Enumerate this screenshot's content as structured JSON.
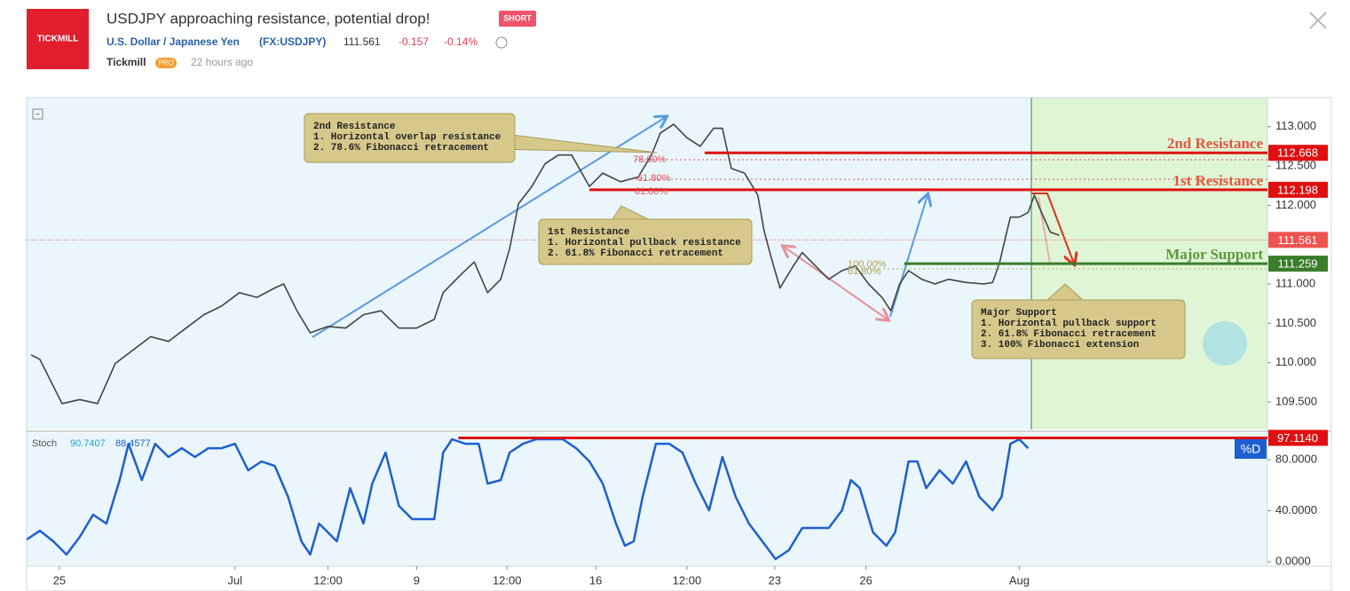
{
  "header": {
    "logo": "TICKMILL",
    "title": "USDJPY approaching resistance, potential drop!",
    "badge": "SHORT",
    "symbol": "U.S. Dollar / Japanese Yen",
    "exchange": "(FX:USDJPY)",
    "price": "111.561",
    "change": "-0.157",
    "change_pct": "-0.14%",
    "author": "Tickmill",
    "author_badge": "PRO",
    "time": "22 hours ago"
  },
  "chart_data": [
    {
      "type": "line",
      "color": "#444444",
      "xlim": [
        0,
        140
      ],
      "ylim": [
        109.15,
        113.37
      ],
      "x": [
        0.5,
        1.5,
        4,
        6,
        8,
        10,
        12,
        14,
        16,
        18,
        20,
        22,
        24,
        26,
        28,
        29,
        30.5,
        32,
        34,
        36,
        38,
        40,
        42,
        44,
        46,
        47,
        49,
        50.5,
        52,
        53.5,
        54.5,
        55.5,
        57,
        58.5,
        60,
        61.5,
        63.5,
        65,
        67,
        69,
        70.5,
        71.5,
        73,
        74.5,
        76,
        77.5,
        78.5,
        79.5,
        81,
        82.5,
        83.2,
        84,
        85,
        86.5,
        87.5,
        89,
        90.5,
        92,
        93.5,
        95,
        96.5,
        97.5,
        98.5,
        99.5,
        101,
        102.5,
        104,
        106,
        108,
        109,
        109.8,
        110.5,
        111,
        112,
        113,
        113.7,
        114.5,
        115.5,
        116.5
      ],
      "values": [
        110.1,
        110.04,
        109.48,
        109.53,
        109.48,
        109.99,
        110.16,
        110.33,
        110.27,
        110.44,
        110.61,
        110.72,
        110.89,
        110.83,
        110.95,
        111.0,
        110.66,
        110.38,
        110.46,
        110.44,
        110.61,
        110.66,
        110.44,
        110.44,
        110.55,
        110.89,
        111.12,
        111.28,
        110.89,
        111.06,
        111.45,
        112.02,
        112.24,
        112.53,
        112.64,
        112.64,
        112.24,
        112.41,
        112.3,
        112.36,
        112.64,
        112.92,
        113.03,
        112.86,
        112.75,
        112.98,
        112.98,
        112.47,
        112.41,
        112.13,
        111.68,
        111.34,
        110.95,
        111.23,
        111.4,
        111.23,
        111.06,
        111.17,
        111.23,
        111.0,
        110.83,
        110.66,
        111.0,
        111.17,
        111.06,
        111.0,
        111.06,
        111.02,
        111.0,
        111.02,
        111.28,
        111.62,
        111.85,
        111.85,
        111.91,
        112.13,
        111.91,
        111.66,
        111.62
      ],
      "yticks": [
        {
          "value": 113,
          "label": "113.000"
        },
        {
          "value": 112.5,
          "label": "112.500"
        },
        {
          "value": 112,
          "label": "112.000"
        },
        {
          "value": 111,
          "label": "111.000"
        },
        {
          "value": 110.5,
          "label": "110.500"
        },
        {
          "value": 110,
          "label": "110.000"
        },
        {
          "value": 109.5,
          "label": "109.500"
        }
      ],
      "levels": [
        {
          "name": "2nd Resistance",
          "value": 112.668,
          "start": 76.5,
          "color": "#e01010"
        },
        {
          "name": "1st Resistance",
          "value": 112.198,
          "start": 63.5,
          "color": "#e01010"
        },
        {
          "name": "Major Support",
          "value": 111.259,
          "start": 99,
          "color": "#3a7d2a"
        }
      ],
      "last_price": 111.561,
      "fib_labels": [
        "78.60%",
        "61.80%",
        "61.80%",
        "100.00%",
        "61.80%"
      ],
      "callouts": [
        {
          "lines": [
            "2nd Resistance",
            "1. Horizontal overlap resistance",
            "2. 78.6% Fibonacci retracement"
          ]
        },
        {
          "lines": [
            "1st Resistance",
            "1. Horizontal pullback resistance",
            "2.  61.8% Fibonacci retracement"
          ]
        },
        {
          "lines": [
            "Major Support",
            "1. Horizontal pullback support",
            "2.  61.8% Fibonacci retracement",
            "3.  100% Fibonacci extension"
          ]
        }
      ]
    },
    {
      "type": "line",
      "label": "Stoch",
      "readouts": [
        "90.7407",
        "88.4577"
      ],
      "badge": "%D",
      "xlim": [
        0,
        140
      ],
      "ylim": [
        -3.5,
        100.9
      ],
      "series": [
        {
          "color": "#1e5fd0",
          "x": [
            0,
            1.5,
            3,
            4.5,
            6,
            7.5,
            9,
            10.5,
            11.5,
            13,
            14.5,
            16,
            17.5,
            19,
            20.5,
            22,
            23.5,
            25,
            26.5,
            28,
            29.5,
            31,
            32,
            33,
            35,
            36.5,
            38,
            39,
            40.5,
            42,
            43.5,
            45,
            46,
            47,
            48,
            49.5,
            51,
            52,
            53.5,
            54.5,
            56,
            57.5,
            59,
            60.5,
            62,
            63.5,
            65,
            66.5,
            67.5,
            68.5,
            69.5,
            71,
            72.5,
            74,
            75.5,
            77,
            78.5,
            80,
            81.5,
            83,
            84.5,
            86,
            87.5,
            89,
            90.5,
            92,
            93,
            94,
            95.5,
            97,
            98,
            99.5,
            100.5,
            101.5,
            103,
            104.5,
            106,
            107.5,
            109,
            110,
            111,
            112,
            113
          ],
          "values": [
            17.4,
            24.3,
            16.0,
            5.6,
            19.5,
            36.9,
            29.9,
            64.0,
            92.5,
            64.0,
            92.5,
            82.1,
            89.0,
            82.1,
            89.0,
            89.0,
            92.5,
            71.7,
            78.6,
            75.1,
            50.8,
            16.0,
            5.6,
            29.9,
            16.0,
            57.7,
            29.9,
            61.2,
            85.6,
            43.8,
            33.4,
            33.4,
            33.4,
            85.6,
            96.0,
            92.5,
            92.5,
            61.2,
            64.0,
            85.6,
            92.5,
            96.0,
            96.0,
            96.0,
            89.0,
            78.6,
            61.2,
            29.9,
            12.5,
            16.0,
            50.8,
            92.5,
            92.5,
            85.6,
            61.2,
            40.3,
            82.1,
            50.8,
            29.9,
            16.0,
            2.1,
            9.0,
            26.4,
            26.4,
            26.4,
            40.3,
            64.0,
            57.7,
            23.0,
            12.5,
            23.0,
            78.6,
            78.6,
            57.7,
            71.7,
            61.2,
            78.6,
            50.8,
            40.3,
            50.8,
            92.5,
            96.0,
            89.0
          ]
        }
      ],
      "level": {
        "value": 97.114,
        "label": "97.1140",
        "start": 48.7
      },
      "yticks": [
        {
          "value": 80,
          "label": "80.0000"
        },
        {
          "value": 40,
          "label": "40.0000"
        },
        {
          "value": 0,
          "label": "0.0000"
        }
      ],
      "xticks": [
        {
          "value": 3.7,
          "label": "25"
        },
        {
          "value": 23.5,
          "label": "Jul"
        },
        {
          "value": 34,
          "label": "12:00"
        },
        {
          "value": 44,
          "label": "9"
        },
        {
          "value": 54.2,
          "label": "12:00"
        },
        {
          "value": 64.2,
          "label": "16"
        },
        {
          "value": 74.5,
          "label": "12:00"
        },
        {
          "value": 84.4,
          "label": "23"
        },
        {
          "value": 94.7,
          "label": "26"
        },
        {
          "value": 112,
          "label": "Aug"
        }
      ]
    }
  ]
}
